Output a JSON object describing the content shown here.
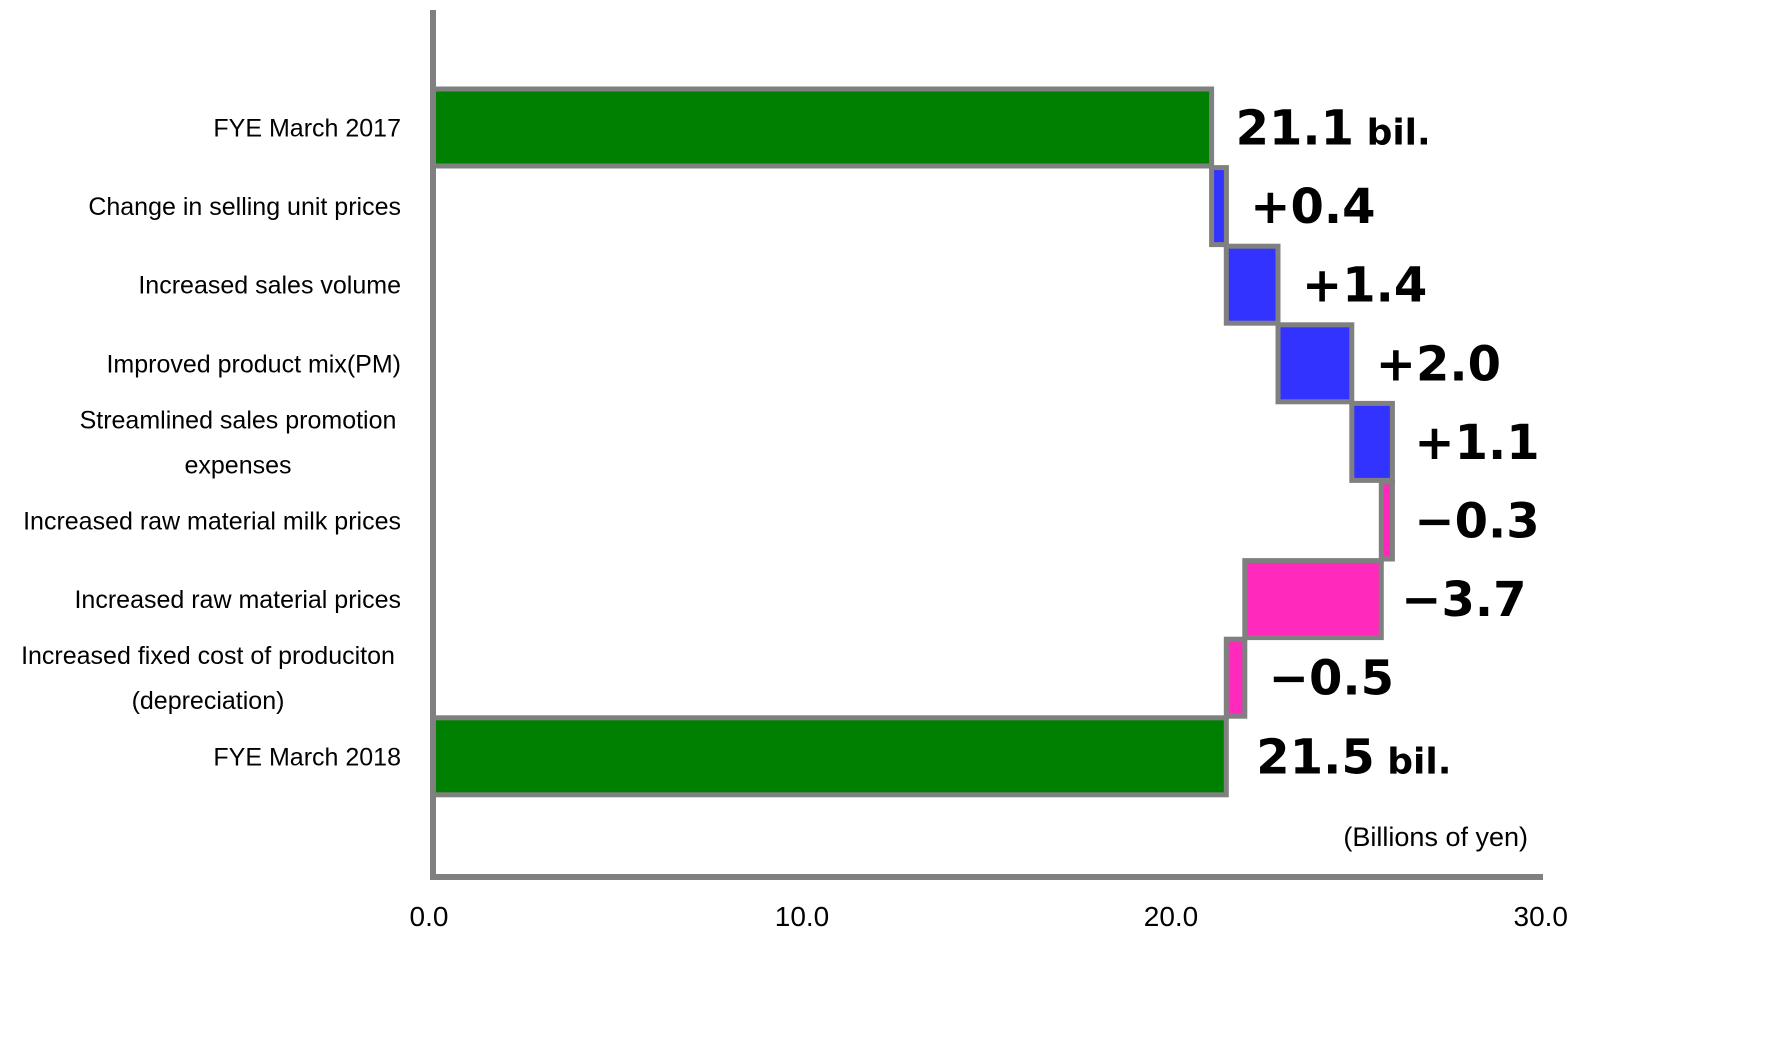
{
  "chart_data": {
    "type": "bar",
    "subtype": "horizontal-waterfall",
    "categories": [
      "FYE March 2017",
      "Change in selling unit prices",
      "Increased sales volume",
      "Improved product mix(PM)",
      "Streamlined sales promotion expenses",
      "Increased raw material milk prices",
      "Increased raw material prices",
      "Increased fixed cost of produciton (depreciation)",
      "FYE March 2018"
    ],
    "category_lines": [
      [
        "FYE March 2017"
      ],
      [
        "Change in selling unit prices"
      ],
      [
        "Increased sales volume"
      ],
      [
        "Improved product mix(PM)"
      ],
      [
        "Streamlined sales promotion",
        "expenses"
      ],
      [
        "Increased raw material milk prices"
      ],
      [
        "Increased raw material prices"
      ],
      [
        "Increased fixed cost of produciton",
        "(depreciation)"
      ],
      [
        "FYE March 2018"
      ]
    ],
    "values": [
      21.1,
      0.4,
      1.4,
      2.0,
      1.1,
      -0.3,
      -3.7,
      -0.5,
      21.5
    ],
    "kinds": [
      "total",
      "increase",
      "increase",
      "increase",
      "increase",
      "decrease",
      "decrease",
      "decrease",
      "total"
    ],
    "data_labels": [
      "21.1",
      "+0.4",
      "+1.4",
      "+2.0",
      "+1.1",
      "−0.3",
      "−3.7",
      "−0.5",
      "21.5"
    ],
    "data_label_suffix": " bil.",
    "xlim": [
      0,
      30
    ],
    "x_ticks": [
      "0.0",
      "10.0",
      "20.0",
      "30.0"
    ],
    "unit_label": "(Billions of yen)",
    "grid": false,
    "colors": {
      "total": "#008000",
      "increase": "#3333ff",
      "decrease": "#ff2abb",
      "outline": "#808080"
    }
  }
}
